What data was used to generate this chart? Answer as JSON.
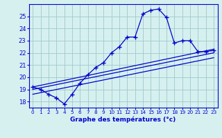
{
  "xlabel": "Graphe des températures (°c)",
  "bg_color": "#d6f0f0",
  "line_color": "#0000cc",
  "grid_color": "#a0c8c8",
  "xlim": [
    -0.5,
    23.5
  ],
  "ylim": [
    17.5,
    26.0
  ],
  "yticks": [
    18,
    19,
    20,
    21,
    22,
    23,
    24,
    25
  ],
  "xticks": [
    0,
    1,
    2,
    3,
    4,
    5,
    6,
    7,
    8,
    9,
    10,
    11,
    12,
    13,
    14,
    15,
    16,
    17,
    18,
    19,
    20,
    21,
    22,
    23
  ],
  "main_series": {
    "x": [
      0,
      1,
      2,
      3,
      4,
      5,
      6,
      7,
      8,
      9,
      10,
      11,
      12,
      13,
      14,
      15,
      16,
      17,
      18,
      19,
      20,
      21,
      22,
      23
    ],
    "y": [
      19.2,
      19.0,
      18.6,
      18.3,
      17.8,
      18.6,
      19.5,
      20.2,
      20.8,
      21.2,
      22.0,
      22.5,
      23.3,
      23.3,
      25.2,
      25.5,
      25.6,
      24.9,
      22.8,
      23.0,
      23.0,
      22.1,
      22.1,
      22.2
    ]
  },
  "diag_lines": [
    {
      "x": [
        0,
        23
      ],
      "y": [
        19.2,
        22.3
      ]
    },
    {
      "x": [
        0,
        23
      ],
      "y": [
        19.0,
        22.0
      ]
    },
    {
      "x": [
        0,
        23
      ],
      "y": [
        18.6,
        21.6
      ]
    }
  ]
}
